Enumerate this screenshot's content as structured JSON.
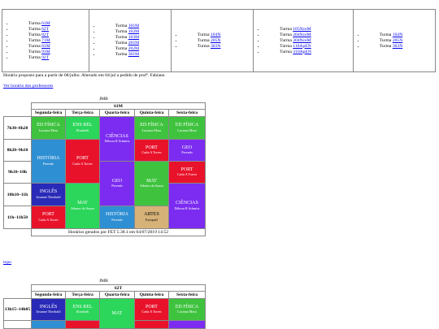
{
  "nav_columns": [
    [
      "61M",
      "62T",
      "82T",
      "71M",
      "81M",
      "91M",
      "92T"
    ],
    [
      "101M",
      "102M",
      "103M",
      "201M",
      "202M",
      "301M"
    ],
    [
      "104N",
      "205N",
      "303N"
    ],
    [
      "105NceM",
      "204NceM",
      "304NceM",
      "110ApEN",
      "310ApEN"
    ],
    [
      "104N",
      "205N",
      "303N"
    ]
  ],
  "turma_label": "Turma",
  "note": "Horário proposto para a partir de 08/julho. Alterado em 04/jul a pedido de profª. Fabiane.",
  "prof_link": "Ver horário dos professores",
  "topo": "topo",
  "colors": {
    "red": "#e8132b",
    "green": "#3fc33f",
    "purple": "#7b2cf0",
    "orange": "#f23a0c",
    "blue": "#2a2ab8",
    "teal": "#2f8fd3",
    "tan": "#d6b279",
    "ltgreen": "#2bd65a"
  },
  "schedule1": {
    "school": "JMB",
    "class": "61M",
    "days": [
      "Segunda-feira",
      "Terça-feira",
      "Quarta-feira",
      "Quinta-feira",
      "Sexta-feira"
    ],
    "times": [
      "7h30–8h20",
      "8h20–9h10",
      "9h10–10h",
      "10h10–11h",
      "11h–11h50"
    ],
    "cells": {
      "seg1": {
        "subj": "ED FÍSICA",
        "teach": "Luciana Mesa"
      },
      "ter1": {
        "subj": "ENS REL",
        "teach": "Elizabeth"
      },
      "qua1": {
        "subj": "CIÊNCIAS",
        "teach": "Débora R Schmitz"
      },
      "qui1": {
        "subj": "ED FÍSICA",
        "teach": "Luciana Mesa"
      },
      "sex1": {
        "subj": "ED FÍSICA",
        "teach": "Luciana Mesa"
      },
      "qui2": {
        "subj": "PORT",
        "teach": "Carla A Torres"
      },
      "sex2": {
        "subj": "GEO",
        "teach": "Pereado"
      },
      "seg2": {
        "subj": "HISTÓRIA",
        "teach": "Pereado"
      },
      "ter2": {
        "subj": "PORT",
        "teach": "Carla A Torres"
      },
      "sex3": {
        "subj": "PORT",
        "teach": "Carla A Torres"
      },
      "qua3": {
        "subj": "GEO",
        "teach": "Pereado"
      },
      "qui3": {
        "subj": "MAT",
        "teach": "Adones da Souza"
      },
      "seg4": {
        "subj": "INGLÊS",
        "teach": "Josanne Theobald"
      },
      "ter4": {
        "subj": "MAT",
        "teach": "Adones de Souza"
      },
      "sex4": {
        "subj": "CIÊNCIAS",
        "teach": "Débora R Schmitz"
      },
      "seg5": {
        "subj": "PORT",
        "teach": "Carla A Torres"
      },
      "qua5": {
        "subj": "HISTÓRIA",
        "teach": "Pereado"
      },
      "qui5": {
        "subj": "ARTES",
        "teach": "Ezequiel"
      }
    },
    "footer": "Horários gerados por FET 5.38.1 em 04/07/2019 14:52"
  },
  "schedule2": {
    "school": "JMB",
    "class": "62T",
    "days": [
      "Segunda-feira",
      "Terça-feira",
      "Quarta-feira",
      "Quinta-feira",
      "Sexta-feira"
    ],
    "times": [
      "13h15–14h05"
    ],
    "cells": {
      "seg1": {
        "subj": "INGLÊS",
        "teach": "Josanne Theobald"
      },
      "ter1": {
        "subj": "ENS REL",
        "teach": "Elizabeth"
      },
      "qua1": {
        "subj": "MAT",
        "teach": ""
      },
      "qui1": {
        "subj": "PORT",
        "teach": "Carla A Torres"
      },
      "sex1": {
        "subj": "ED FÍSICA",
        "teach": "Luciana Mesa"
      }
    }
  }
}
